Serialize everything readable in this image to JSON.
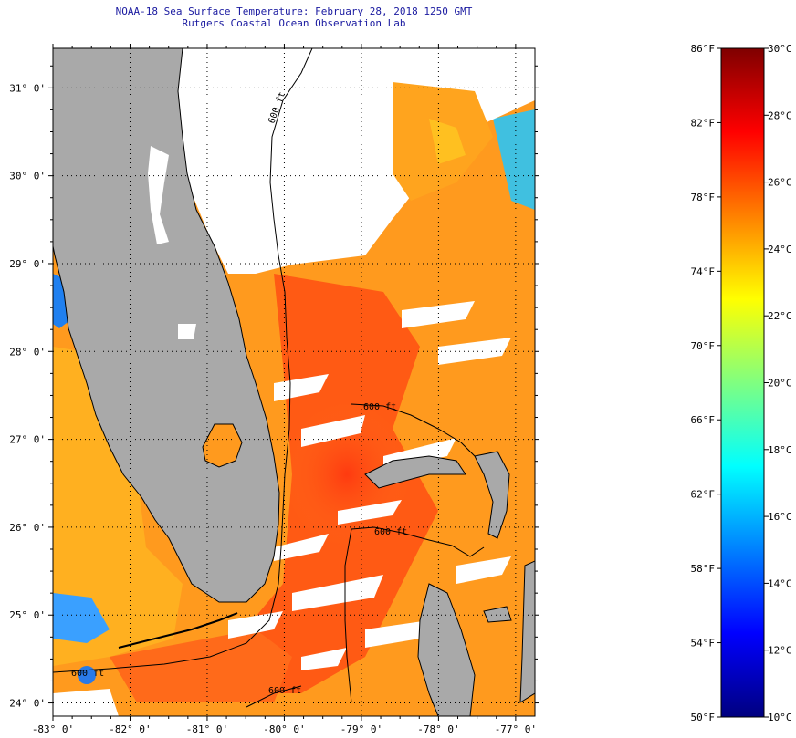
{
  "title": {
    "line1": "NOAA-18 Sea Surface Temperature:  February 28, 2018 1250 GMT",
    "line2": "Rutgers Coastal Ocean Observation Lab"
  },
  "map": {
    "lon_range": [
      -83,
      -76.75
    ],
    "lat_range": [
      23.85,
      31.45
    ],
    "lon_ticks": [
      {
        "value": -83,
        "label": "-83° 0'"
      },
      {
        "value": -82,
        "label": "-82° 0'"
      },
      {
        "value": -81,
        "label": "-81° 0'"
      },
      {
        "value": -80,
        "label": "-80° 0'"
      },
      {
        "value": -79,
        "label": "-79° 0'"
      },
      {
        "value": -78,
        "label": "-78° 0'"
      },
      {
        "value": -77,
        "label": "-77° 0'"
      }
    ],
    "lat_ticks": [
      {
        "value": 31,
        "label": "31° 0'"
      },
      {
        "value": 30,
        "label": "30° 0'"
      },
      {
        "value": 29,
        "label": "29° 0'"
      },
      {
        "value": 28,
        "label": "28° 0'"
      },
      {
        "value": 27,
        "label": "27° 0'"
      },
      {
        "value": 26,
        "label": "26° 0'"
      },
      {
        "value": 25,
        "label": "25° 0'"
      },
      {
        "value": 24,
        "label": "24° 0'"
      }
    ],
    "contour_labels": [
      "600 ft",
      "600 ft",
      "600 ft",
      "600 ft",
      "600 ft"
    ],
    "colors": {
      "land": "#a9a9a9",
      "cloud": "#ffffff",
      "coastline": "#000000",
      "grid": "#000000"
    }
  },
  "colorbar": {
    "fahrenheit_labels": [
      "86°F",
      "82°F",
      "78°F",
      "74°F",
      "70°F",
      "66°F",
      "62°F",
      "58°F",
      "54°F",
      "50°F"
    ],
    "celsius_labels": [
      "30°C",
      "28°C",
      "26°C",
      "24°C",
      "22°C",
      "20°C",
      "18°C",
      "16°C",
      "14°C",
      "12°C",
      "10°C"
    ],
    "range_c": [
      10,
      30
    ],
    "range_f": [
      50,
      86
    ],
    "stops": [
      "#00007f",
      "#0000ff",
      "#0080ff",
      "#00ffff",
      "#80ff80",
      "#ffff00",
      "#ff8000",
      "#ff0000",
      "#7f0000"
    ]
  }
}
